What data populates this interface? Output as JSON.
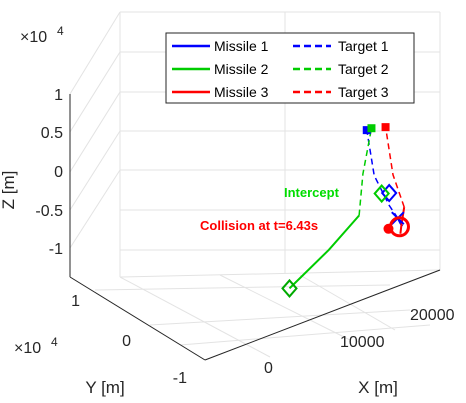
{
  "chart_data": {
    "type": "line3d",
    "xlabel": "X [m]",
    "ylabel": "Y [m]",
    "zlabel": "Z [m]",
    "x_ticks": [
      "0",
      "10000",
      "20000"
    ],
    "y_ticks": [
      "-1",
      "0",
      "1"
    ],
    "y_exponent_base": "×10",
    "y_exponent_power": "4",
    "z_ticks": [
      "-1",
      "-0.5",
      "0",
      "0.5",
      "1"
    ],
    "z_exponent_base": "×10",
    "z_exponent_power": "4",
    "xlim": [
      -4000,
      27000
    ],
    "ylim": [
      -12000,
      12000
    ],
    "zlim": [
      -12000,
      12000
    ],
    "grid": true,
    "legend_position": "top-right",
    "legend": [
      {
        "label": "Missile 1",
        "color": "#0000ff",
        "style": "solid"
      },
      {
        "label": "Target 1",
        "color": "#0000ff",
        "style": "dashed"
      },
      {
        "label": "Missile 2",
        "color": "#00cc00",
        "style": "solid"
      },
      {
        "label": "Target 2",
        "color": "#00cc00",
        "style": "dashed"
      },
      {
        "label": "Missile 3",
        "color": "#ff0000",
        "style": "solid"
      },
      {
        "label": "Target 3",
        "color": "#ff0000",
        "style": "dashed"
      }
    ],
    "annotations": {
      "intercept": {
        "text": "Intercept",
        "color": "#00dd00"
      },
      "collision": {
        "text": "Collision at t=6.43s",
        "color": "#ff0000"
      }
    },
    "series": [
      {
        "name": "Missile 1",
        "color": "#0000ff",
        "style": "solid",
        "points": [
          [
            15000,
            -10000,
            1800
          ],
          [
            15100,
            -9500,
            1900
          ],
          [
            15300,
            -8700,
            2100
          ]
        ]
      },
      {
        "name": "Target 1",
        "color": "#0000ff",
        "style": "dashed",
        "points": [
          [
            15300,
            -8700,
            2100
          ],
          [
            16000,
            -6000,
            2200
          ],
          [
            18000,
            0,
            2400
          ],
          [
            22000,
            8000,
            2700
          ]
        ]
      },
      {
        "name": "Missile 2",
        "color": "#00cc00",
        "style": "solid",
        "points": [
          [
            3000,
            -10000,
            -300
          ],
          [
            9000,
            -7000,
            400
          ],
          [
            14000,
            -4000,
            1000
          ]
        ]
      },
      {
        "name": "Target 2",
        "color": "#00cc00",
        "style": "dashed",
        "points": [
          [
            14000,
            -4000,
            1000
          ],
          [
            18000,
            2000,
            1700
          ],
          [
            22500,
            8000,
            2700
          ]
        ]
      },
      {
        "name": "Missile 3",
        "color": "#ff0000",
        "style": "solid",
        "points": [
          [
            14500,
            -10500,
            1300
          ],
          [
            15200,
            -9500,
            1600
          ],
          [
            17600,
            -6000,
            1200
          ]
        ]
      },
      {
        "name": "Target 3",
        "color": "#ff0000",
        "style": "dashed",
        "points": [
          [
            17600,
            -6000,
            1200
          ],
          [
            20000,
            0,
            1500
          ],
          [
            24000,
            8000,
            2100
          ]
        ]
      }
    ],
    "markers": [
      {
        "series": "Missile 1",
        "symbol": "x",
        "color": "#0000ff",
        "point": [
          15300,
          -8700,
          2100
        ]
      },
      {
        "series": "Target 1",
        "symbol": "diamond",
        "color": "#0000ff",
        "point": [
          16000,
          -6000,
          3800
        ]
      },
      {
        "series": "Target 1",
        "symbol": "square",
        "color": "#0000ff",
        "point": [
          22000,
          8000,
          2700
        ]
      },
      {
        "series": "Missile 2",
        "symbol": "diamond",
        "color": "#00aa00",
        "point": [
          3000,
          -10000,
          -300
        ]
      },
      {
        "series": "Target 2",
        "symbol": "diamond",
        "color": "#00cc00",
        "point": [
          17000,
          -3000,
          1900
        ]
      },
      {
        "series": "Target 2",
        "symbol": "square",
        "color": "#00cc00",
        "point": [
          22500,
          8000,
          2700
        ]
      },
      {
        "series": "Missile 3",
        "symbol": "circle",
        "color": "#ff0000",
        "point": [
          15000,
          -9500,
          1500
        ]
      },
      {
        "series": "Target 3",
        "symbol": "square",
        "color": "#ff0000",
        "point": [
          24000,
          8000,
          2100
        ]
      }
    ]
  }
}
